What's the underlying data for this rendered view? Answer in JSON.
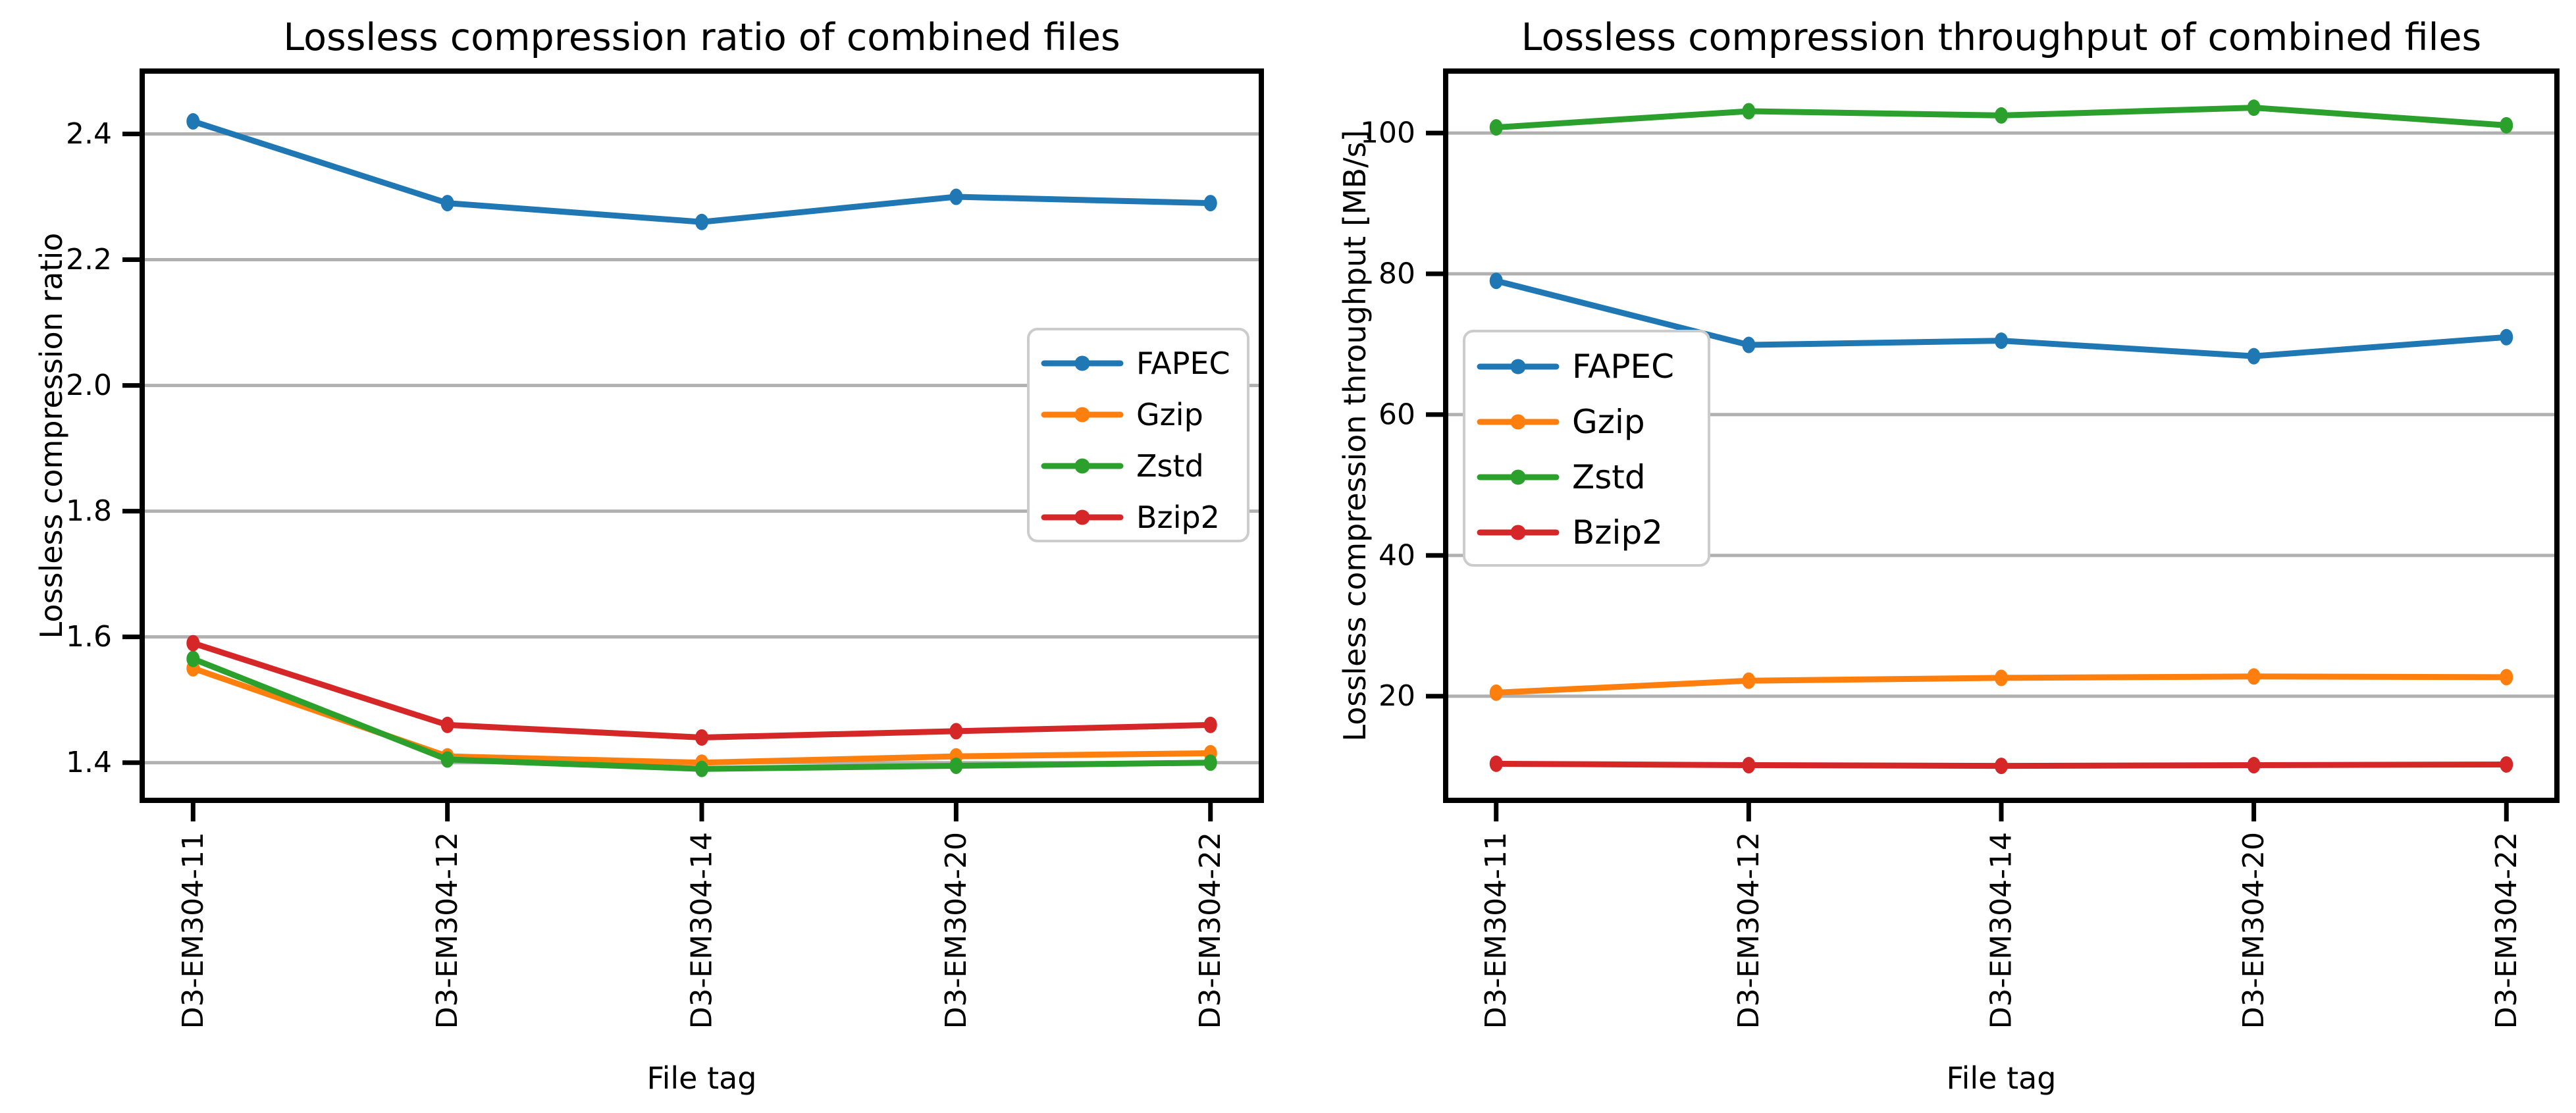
{
  "figure": {
    "background": "#ffffff",
    "text_color": "#000000",
    "grid_color": "#b0b0b0",
    "spine_color": "#000000",
    "legend_border_color": "#cccccc",
    "legend_background": "#ffffff"
  },
  "chart_data": [
    {
      "type": "line",
      "title": "Lossless compression ratio of combined files",
      "xlabel": "File tag",
      "ylabel": "Lossless compression ratio",
      "categories": [
        "D3-EM304-11",
        "D3-EM304-12",
        "D3-EM304-14",
        "D3-EM304-20",
        "D3-EM304-22"
      ],
      "series": [
        {
          "name": "FAPEC",
          "color": "#1f77b4",
          "marker": "circle",
          "values": [
            2.42,
            2.29,
            2.26,
            2.3,
            2.29
          ]
        },
        {
          "name": "Gzip",
          "color": "#ff7f0e",
          "marker": "circle",
          "values": [
            1.55,
            1.41,
            1.4,
            1.41,
            1.415
          ]
        },
        {
          "name": "Zstd",
          "color": "#2ca02c",
          "marker": "circle",
          "values": [
            1.565,
            1.405,
            1.39,
            1.395,
            1.4
          ]
        },
        {
          "name": "Bzip2",
          "color": "#d62728",
          "marker": "circle",
          "values": [
            1.59,
            1.46,
            1.44,
            1.45,
            1.46
          ]
        }
      ],
      "yticks": [
        {
          "value": 1.4,
          "label": "1.4"
        },
        {
          "value": 1.6,
          "label": "1.6"
        },
        {
          "value": 1.8,
          "label": "1.8"
        },
        {
          "value": 2.0,
          "label": "2.0"
        },
        {
          "value": 2.2,
          "label": "2.2"
        },
        {
          "value": 2.4,
          "label": "2.4"
        }
      ],
      "ylim": [
        1.34,
        2.5
      ],
      "grid": true,
      "legend_position": "center-right",
      "x_tick_rotation": 90
    },
    {
      "type": "line",
      "title": "Lossless compression throughput of combined files",
      "xlabel": "File tag",
      "ylabel": "Lossless compression throughput [MB/s]",
      "categories": [
        "D3-EM304-11",
        "D3-EM304-12",
        "D3-EM304-14",
        "D3-EM304-20",
        "D3-EM304-22"
      ],
      "series": [
        {
          "name": "FAPEC",
          "color": "#1f77b4",
          "marker": "circle",
          "values": [
            79.0,
            69.9,
            70.5,
            68.3,
            71.0
          ]
        },
        {
          "name": "Gzip",
          "color": "#ff7f0e",
          "marker": "circle",
          "values": [
            20.5,
            22.2,
            22.6,
            22.8,
            22.7
          ]
        },
        {
          "name": "Zstd",
          "color": "#2ca02c",
          "marker": "circle",
          "values": [
            100.8,
            103.1,
            102.5,
            103.6,
            101.1
          ]
        },
        {
          "name": "Bzip2",
          "color": "#d62728",
          "marker": "circle",
          "values": [
            10.4,
            10.2,
            10.1,
            10.2,
            10.3
          ]
        }
      ],
      "yticks": [
        {
          "value": 20,
          "label": "20"
        },
        {
          "value": 40,
          "label": "40"
        },
        {
          "value": 60,
          "label": "60"
        },
        {
          "value": 80,
          "label": "80"
        },
        {
          "value": 100,
          "label": "100"
        }
      ],
      "ylim": [
        5.2,
        108.8
      ],
      "grid": true,
      "legend_position": "center-left",
      "x_tick_rotation": 90
    }
  ]
}
